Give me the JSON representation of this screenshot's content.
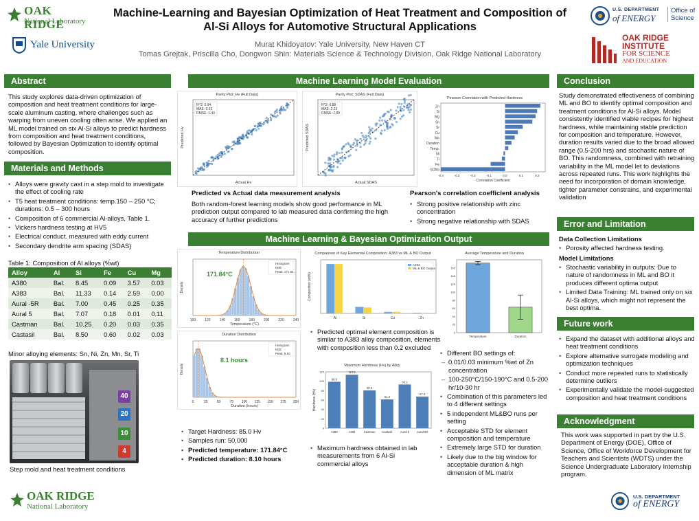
{
  "header": {
    "title_line1": "Machine-Learning and Bayesian Optimization of Heat Treatment and Composition of",
    "title_line2": "Al-Si Alloys for Automotive Structural Applications",
    "author_line1": "Murat Khidoyatov: Yale University, New Haven CT",
    "author_line2": "Tomas Grejtak, Priscilla Cho, Dongwon Shin: Materials Science & Technology Division, Oak Ridge National Laboratory"
  },
  "logos": {
    "ornl_top": "OAK RIDGE",
    "ornl_top_sub": "National Laboratory",
    "yale": "Yale University",
    "doe_top_line1": "U.S. DEPARTMENT",
    "doe_top_line2": "of ENERGY",
    "doe_office": "Office of Science",
    "orise_line1": "OAK RIDGE",
    "orise_line2": "INSTITUTE",
    "orise_line3": "FOR SCIENCE",
    "orise_line4": "AND EDUCATION",
    "ornl_bottom": "OAK RIDGE",
    "ornl_bottom_sub": "National Laboratory",
    "doe_bottom_line1": "U.S. DEPARTMENT",
    "doe_bottom_line2": "of ENERGY"
  },
  "sections": {
    "abstract": "Abstract",
    "materials": "Materials and Methods",
    "ml_eval": "Machine Learning Model Evaluation",
    "ml_bo": "Machine Learning & Bayesian Optimization Output",
    "conclusion": "Conclusion",
    "error": "Error and Limitation",
    "future": "Future work",
    "ack": "Acknowledgment"
  },
  "abstract_text": "This study explores data-driven optimization of composition and heat treatment conditions for large-scale aluminum casting, where challenges such as warping from uneven cooling often arise. We applied an ML model trained on six Al-Si alloys to predict hardness from composition and heat treatment conditions, followed by Bayesian Optimization to identify optimal composition.",
  "methods": [
    "Alloys were gravity cast in a step mold to investigate the effect of cooling rate",
    "T5 heat treatment conditions: temp.150 – 250 °C; durations: 0.5 – 300 hours",
    "Composition of 6 commercial Al-alloys, Table 1.",
    "Vickers hardness testing at HV5",
    "Electrical conduct. measured with eddy current",
    "Secondary dendrite arm spacing (SDAS)"
  ],
  "table": {
    "caption": "Table 1: Composition of Al alloys (%wt)",
    "headers": [
      "Alloy",
      "Al",
      "Si",
      "Fe",
      "Cu",
      "Mg"
    ],
    "rows": [
      [
        "A380",
        "Bal.",
        "8.45",
        "0.09",
        "3.57",
        "0.03"
      ],
      [
        "A383",
        "Bal.",
        "11.33",
        "0.14",
        "2.59",
        "0.00"
      ],
      [
        "Aural -5R",
        "Bal.",
        "7.00",
        "0.45",
        "0.25",
        "0.35"
      ],
      [
        "Aural 5",
        "Bal.",
        "7.07",
        "0.18",
        "0.01",
        "0.11"
      ],
      [
        "Castman",
        "Bal.",
        "10.25",
        "0.20",
        "0.03",
        "0.35"
      ],
      [
        "Castasil",
        "Bal.",
        "8.50",
        "0.60",
        "0.02",
        "0.03"
      ]
    ],
    "minor": "Minor alloying elements: Sn, Ni, Zn, Mn, Sr, Ti"
  },
  "photo": {
    "caption": "Step mold and heat treatment conditions",
    "steps": [
      "40",
      "20",
      "10",
      "4"
    ]
  },
  "ml_eval": {
    "predicted_title": "Predicted vs Actual data measurement analysis",
    "predicted_text": "Both random-forest learning models show good performance in ML prediction output compared to lab measured data confirming the high accuracy of further predictions",
    "pearson_title": "Pearson's correlation coefficient analysis",
    "pearson_items": [
      "Strong positive relationship with zinc concentration",
      "Strong negative relationship with SDAS"
    ],
    "parity1_title": "Parity Plot: Hv (Full Data)",
    "parity1_stats": [
      "R^2: 0.94",
      "MAE: 0.92",
      "RMSE: 1.44"
    ],
    "parity1_xlabel": "Actual Hv",
    "parity1_ylabel": "Predicted Hv",
    "parity2_title": "Parity Plot: SDAS (Full Data)",
    "parity2_stats": [
      "R^2: 0.88",
      "MAE: 2.22",
      "RMSE: 2.89"
    ],
    "parity2_xlabel": "Actual SDAS",
    "parity2_ylabel": "Predicted SDAS",
    "pearson_chart_title": "Pearson Correlation with Predicted Hardness",
    "pearson_xlabel": "Correlation Coefficient"
  },
  "ml_bo": {
    "temp_title": "Temperature Distribution",
    "temp_peak_label": "171.84°C",
    "temp_xlabel": "Temperature (°C)",
    "temp_legend": [
      "Histogram",
      "KDE",
      "Peak: 171.84"
    ],
    "dur_title": "Duration Distribution",
    "dur_peak_label": "8.1 hours",
    "dur_xlabel": "Duration (hours)",
    "dur_legend": [
      "Histogram",
      "KDE",
      "Peak: 8.10"
    ],
    "density_label": "Density",
    "comp_title": "Comparison of Key Elemental Composition: A383 vs ML & BO Output",
    "comp_legend": [
      "A383",
      "ML & BO Output"
    ],
    "comp_ylabel": "Composition (wt%)",
    "avg_title": "Average Temperature and Duration",
    "hard_title": "Maximum Hardness (Hv) by Alloy",
    "hard_ylabel": "Hardness (Hv)",
    "targets": [
      {
        "text": "Target Hardness: 85.0 Hv",
        "bold": false
      },
      {
        "text": "Samples run: 50,000",
        "bold": false
      },
      {
        "text": "Predicted temperature: 171.84°C",
        "bold": true
      },
      {
        "text": "Predicted duration: 8.10 hours",
        "bold": true
      }
    ],
    "composition_note": "Predicted optimal element composition is similar to A383 alloy composition, elements with composition less than 0.2 excluded",
    "hardness_note": "Maximum hardness obtained in lab measurements from 6 Al-Si commercial alloys",
    "bo_items": [
      "Different BO settings of:",
      "Combination of this parameters led to 4 different settings",
      "5 independent ML&BO runs per setting",
      "Acceptable STD for element composition and temperature",
      "Extremely large STD for duration",
      "Likely due to the big window for acceptable duration & high dimension of ML matrix"
    ],
    "bo_sub": [
      "0.01/0.03 minimum %wt of Zn concentration",
      "100-250°C/150-190°C and 0.5-200 hr/10-30 hr"
    ]
  },
  "conclusion_text": "Study demonstrated effectiveness of combining ML and BO to identify optimal composition and treatment conditions for Al-Si alloys. Model consistently identified viable recipes for highest hardness, while maintaining stable prediction for composition and temperature. However, duration results varied due to the broad allowed range (0.5-200 hrs) and stochastic nature of BO. This randomness, combined with retraining variability in the ML model let to deviations across repeated runs. This work highlights the need for incorporation of domain knowledge, tighter parameter constrains, and experimental validation",
  "error": {
    "data_title": "Data Collection Limitations",
    "data_items": [
      "Porosity affected hardness testing."
    ],
    "model_title": "Model Limitations",
    "model_items": [
      "Stochastic variability in outputs: Due to nature of randomness in ML and BO it produces different optima output",
      "Limited Data Training: ML trained only on six Al-Si alloys, which might not represent the best optima."
    ]
  },
  "future_items": [
    "Expand the dataset with additional alloys and heat treatment conditions",
    "Explore alternative surrogate modeling and optimization techniques",
    "Conduct more repeated runs to statistically determine outliers",
    "Experimentally validate the model-suggested composition and heat treatment conditions"
  ],
  "ack_text": "This work was supported in part by the U.S. Department of Energy (DOE), Office of Science, Office of Workforce Development for Teachers and Scientists (WDTS) under the Science Undergraduate Laboratory Internship program.",
  "chart_data": [
    {
      "type": "bar",
      "title": "Pearson Correlation with Predicted Hardness",
      "categories": [
        "Zn",
        "Si",
        "Mg",
        "Sn",
        "Sr",
        "Cu",
        "Mn",
        "Duration",
        "Temp.",
        "Ni",
        "Ti",
        "Fe",
        "SDAS"
      ],
      "values": [
        0.22,
        0.2,
        0.19,
        0.17,
        0.11,
        0.08,
        0.06,
        0.04,
        0.02,
        -0.01,
        -0.02,
        -0.09,
        -0.4
      ],
      "xlabel": "Correlation Coefficient",
      "xlim": [
        -0.4,
        0.25
      ]
    },
    {
      "type": "bar",
      "title": "Comparison of Key Elemental Composition: A383 vs ML & BO Output",
      "categories": [
        "Al",
        "Si",
        "Cu",
        "Zn"
      ],
      "series": [
        {
          "name": "A383",
          "values": [
            83,
            11,
            2.5,
            1.0
          ]
        },
        {
          "name": "ML & BO Output",
          "values": [
            83,
            10,
            2.7,
            0.9
          ]
        }
      ],
      "ylabel": "Composition (wt%)"
    },
    {
      "type": "bar",
      "title": "Average Temperature and Duration",
      "categories": [
        "Temperature",
        "Duration"
      ],
      "values": [
        172,
        63
      ],
      "errors": [
        4,
        30
      ],
      "ylim": [
        0,
        180
      ]
    },
    {
      "type": "bar",
      "title": "Maximum Hardness (Hv) by Alloy",
      "categories": [
        "A380",
        "A383",
        "Castman",
        "Castasil",
        "Aural-5",
        "Aural-5R"
      ],
      "values": [
        98.9,
        113.9,
        80.5,
        61.3,
        93.1,
        67.3
      ],
      "ylabel": "Hardness (Hv)",
      "ylim": [
        0,
        120
      ]
    }
  ]
}
